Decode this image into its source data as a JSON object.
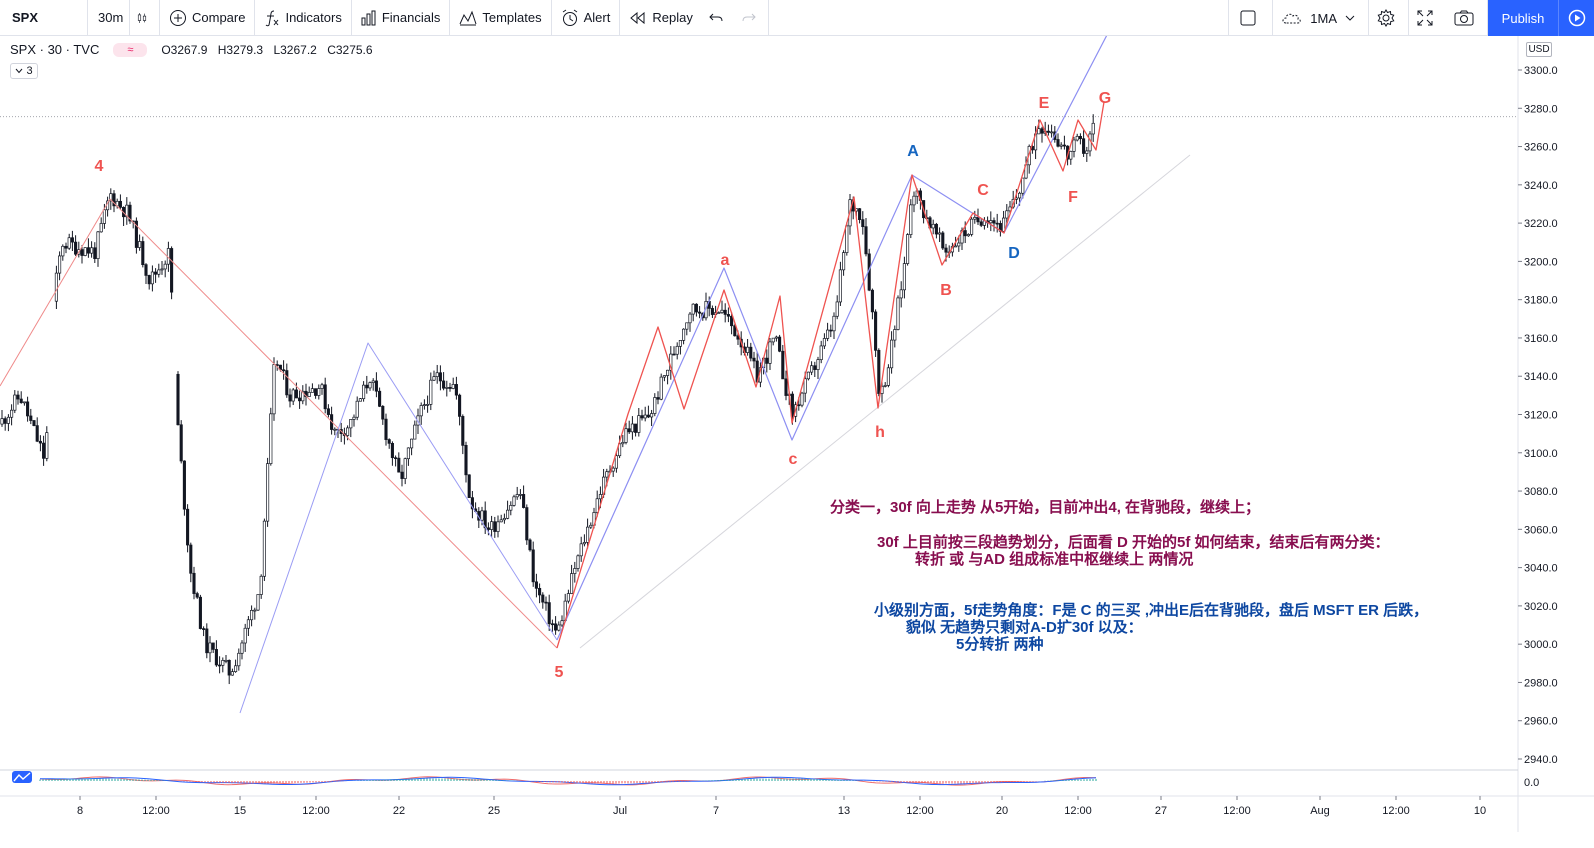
{
  "toolbar": {
    "symbol": "SPX",
    "interval": "30m",
    "compare": "Compare",
    "indicators": "Indicators",
    "financials": "Financials",
    "templates": "Templates",
    "alert": "Alert",
    "replay": "Replay",
    "indicator_preset": "1MA",
    "publish": "Publish"
  },
  "legend": {
    "title": "SPX · 30 · TVC",
    "badge": "≈",
    "open": "O3267.9",
    "high": "H3279.3",
    "low": "L3267.2",
    "close": "C3275.6",
    "collapsed_count": "3"
  },
  "price_axis": {
    "currency": "USD",
    "ticks": [
      "3300.0",
      "3280.0",
      "3260.0",
      "3240.0",
      "3220.0",
      "3200.0",
      "3180.0",
      "3160.0",
      "3140.0",
      "3120.0",
      "3100.0",
      "3080.0",
      "3060.0",
      "3040.0",
      "3020.0",
      "3000.0",
      "2980.0",
      "2960.0",
      "2940.0"
    ],
    "indicator_tick": "0.0"
  },
  "time_axis": {
    "ticks": [
      "8",
      "12:00",
      "15",
      "12:00",
      "22",
      "25",
      "Jul",
      "7",
      "13",
      "12:00",
      "20",
      "12:00",
      "27",
      "12:00",
      "Aug",
      "12:00",
      "10"
    ]
  },
  "wave_labels": {
    "l4": "4",
    "l5": "5",
    "la": "a",
    "lc": "c",
    "lh": "h",
    "lA": "A",
    "lB": "B",
    "lC": "C",
    "lD": "D",
    "lE": "E",
    "lF": "F",
    "lG": "G"
  },
  "annotations": {
    "line1": "分类一，30f 向上走势 从5开始，目前冲出4, 在背驰段，继续上；",
    "line2": "30f 上目前按三段趋势划分，后面看 D 开始的5f 如何结束，结束后有两分类：",
    "line3": "转折   或    与AD 组成标准中枢继续上 两情况",
    "line4": "小级别方面，5f走势角度：F是 C 的三买 ,冲出E后在背驰段，盘后 MSFT ER 后跌，",
    "line5": "貌似 无趋势只剩对A-D扩30f  以及：",
    "line6": "5分转折  两种"
  },
  "chart_data": {
    "type": "candlestick",
    "symbol": "SPX",
    "interval": "30",
    "ylim": [
      2930,
      3310
    ],
    "current_price": 3275.6,
    "wave_points": [
      {
        "label": "4",
        "value": 3233
      },
      {
        "label": "5",
        "value": 3000
      },
      {
        "label": "a",
        "value": 3187
      },
      {
        "label": "c",
        "value": 3108
      },
      {
        "label": "h",
        "value": 3125
      },
      {
        "label": "A",
        "value": 3245
      },
      {
        "label": "B",
        "value": 3200
      },
      {
        "label": "C",
        "value": 3227
      },
      {
        "label": "D",
        "value": 3216
      },
      {
        "label": "E",
        "value": 3276
      },
      {
        "label": "F",
        "value": 3248
      },
      {
        "label": "G",
        "value": 3280
      }
    ],
    "colors": {
      "up": "#ffffff",
      "down": "#131722",
      "red_line": "#ef5350",
      "blue_line": "#7b7ff0",
      "accent": "#2962ff"
    }
  }
}
